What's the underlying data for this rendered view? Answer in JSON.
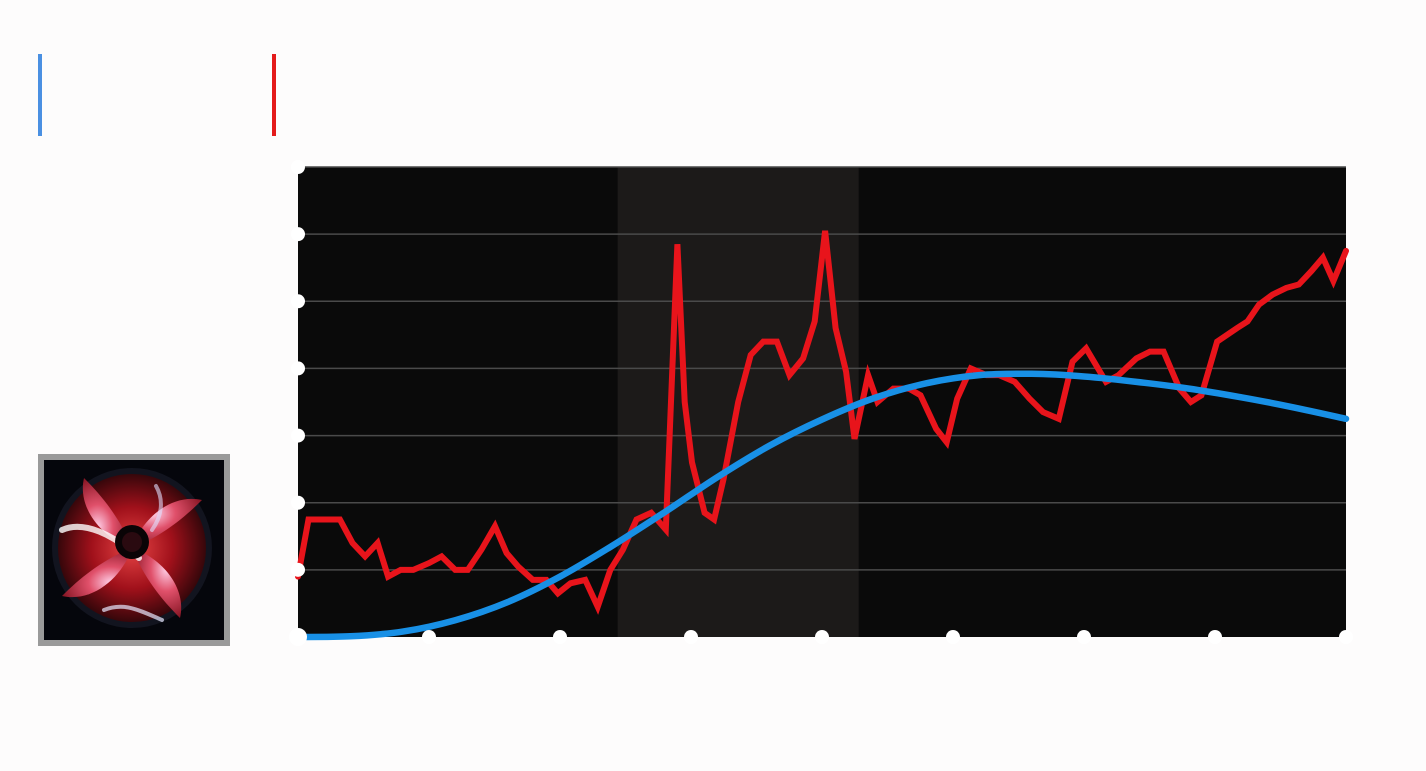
{
  "chart_data": {
    "type": "line",
    "title": "",
    "xlabel": "",
    "ylabel": "",
    "xlim": [
      0,
      100
    ],
    "ylim": [
      0,
      7
    ],
    "x_ticks": [
      0,
      12.5,
      25,
      37.5,
      50,
      62.5,
      75,
      87.5,
      100
    ],
    "y_ticks": [
      0,
      1,
      2,
      3,
      4,
      5,
      6,
      7
    ],
    "grid": true,
    "legend": "top-left",
    "shaded_region": {
      "x_from": 30.5,
      "x_to": 53.5
    },
    "series": [
      {
        "color": "#e8141b",
        "x": [
          0,
          1,
          2.5,
          4,
          5.2,
          6.4,
          7.6,
          8.6,
          9.8,
          11,
          12.5,
          13.7,
          15,
          16.2,
          17.5,
          18.8,
          19.9,
          21,
          22.4,
          23.7,
          24.8,
          26,
          27.4,
          28.6,
          29.8,
          31,
          32.3,
          33.7,
          35.1,
          36.2,
          36.9,
          37.6,
          38.8,
          39.7,
          40.6,
          42,
          43.2,
          44.4,
          45.7,
          46.9,
          48.2,
          49.3,
          50.3,
          51.3,
          52.3,
          53.1,
          54.4,
          55.3,
          56.8,
          58.3,
          59.4,
          60.9,
          61.9,
          62.9,
          64.2,
          65.7,
          66.9,
          68.4,
          69.8,
          71.1,
          72.6,
          73.9,
          75.2,
          77.1,
          78.3,
          80,
          81.3,
          82.6,
          84.1,
          85.2,
          86.2,
          87.7,
          89.6,
          90.6,
          91.7,
          93,
          94.3,
          95.5,
          96.7,
          97.8,
          98.8,
          100
        ],
        "y": [
          0.9,
          1.75,
          1.75,
          1.75,
          1.4,
          1.2,
          1.4,
          0.9,
          1,
          1,
          1.1,
          1.2,
          1,
          1,
          1.3,
          1.65,
          1.25,
          1.05,
          0.85,
          0.85,
          0.65,
          0.8,
          0.85,
          0.45,
          1,
          1.3,
          1.75,
          1.85,
          1.6,
          5.85,
          3.5,
          2.6,
          1.85,
          1.75,
          2.35,
          3.5,
          4.2,
          4.4,
          4.4,
          3.9,
          4.15,
          4.7,
          6.05,
          4.6,
          3.95,
          2.95,
          3.9,
          3.5,
          3.7,
          3.7,
          3.6,
          3.1,
          2.9,
          3.55,
          4,
          3.9,
          3.9,
          3.8,
          3.55,
          3.35,
          3.25,
          4.1,
          4.3,
          3.8,
          3.9,
          4.15,
          4.25,
          4.25,
          3.7,
          3.5,
          3.6,
          4.4,
          4.6,
          4.7,
          4.95,
          5.1,
          5.2,
          5.25,
          5.45,
          5.65,
          5.3,
          5.75
        ]
      },
      {
        "color": "#1890e6",
        "x": [
          0,
          5,
          10,
          15,
          20,
          25,
          30,
          35,
          40,
          45,
          50,
          55,
          60,
          65,
          70,
          75,
          80,
          85,
          90,
          95,
          100
        ],
        "y": [
          0,
          0.01,
          0.08,
          0.25,
          0.52,
          0.9,
          1.36,
          1.86,
          2.38,
          2.85,
          3.24,
          3.56,
          3.78,
          3.9,
          3.92,
          3.88,
          3.8,
          3.7,
          3.57,
          3.42,
          3.25
        ]
      }
    ]
  },
  "colors": {
    "page_background": "#fdfcfc",
    "plot_background": "#0a0a0a",
    "shade": "#1c1a19",
    "gridline": "#4a4a4a",
    "marker": "#ffffff",
    "legend_blue": "#4a90e2",
    "legend_red": "#e41b1b"
  },
  "thumbnail": {
    "icon": "red-led-fan-icon",
    "alt": ""
  }
}
